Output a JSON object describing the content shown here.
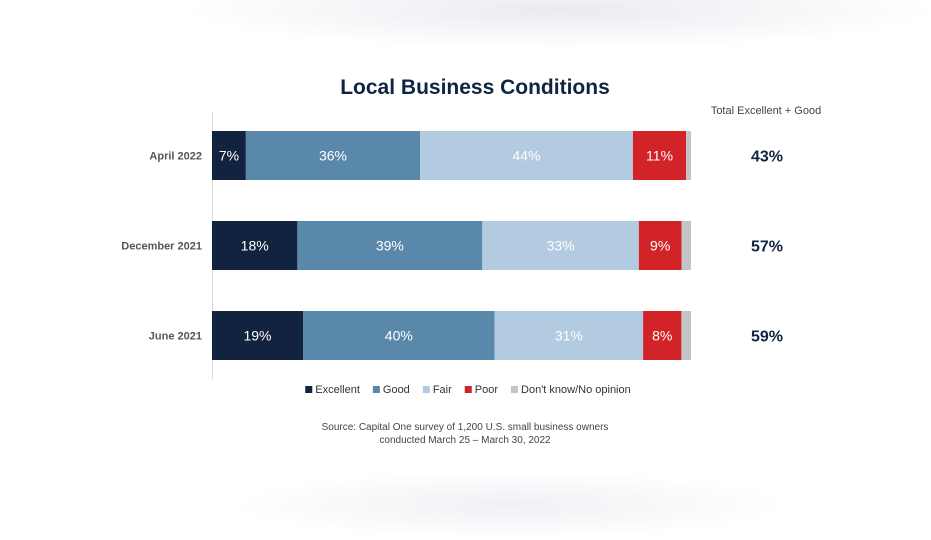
{
  "chart_data": {
    "type": "bar",
    "orientation": "horizontal",
    "stacked": true,
    "title": "Local Business Conditions",
    "categories": [
      "April 2022",
      "December 2021",
      "June 2021"
    ],
    "series": [
      {
        "name": "Excellent",
        "values": [
          7,
          18,
          19
        ],
        "labels": [
          "7%",
          "18%",
          "19%"
        ],
        "color": "#12233f",
        "label_color": "#ffffff"
      },
      {
        "name": "Good",
        "values": [
          36,
          39,
          40
        ],
        "labels": [
          "36%",
          "39%",
          "40%"
        ],
        "color": "#5a88ab",
        "label_color": "#ffffff"
      },
      {
        "name": "Fair",
        "values": [
          44,
          33,
          31
        ],
        "labels": [
          "44%",
          "33%",
          "31%"
        ],
        "color": "#b3cbe0",
        "label_color": "#ffffff"
      },
      {
        "name": "Poor",
        "values": [
          11,
          9,
          8
        ],
        "labels": [
          "11%",
          "9%",
          "8%"
        ],
        "color": "#d22329",
        "label_color": "#ffffff"
      },
      {
        "name": "Don't know/No opinion",
        "values": [
          1,
          2,
          2
        ],
        "labels": [
          "",
          "",
          ""
        ],
        "color": "#c3c4c8",
        "label_color": "#ffffff"
      }
    ],
    "xlim": [
      0,
      100
    ],
    "legend_position": "bottom",
    "grid": false,
    "totals": {
      "header": "Total Excellent + Good",
      "values": [
        "43%",
        "57%",
        "59%"
      ]
    },
    "source_lines": [
      "Source: Capital One survey of 1,200 U.S. small business owners",
      "conducted March 25 – March 30, 2022"
    ]
  }
}
